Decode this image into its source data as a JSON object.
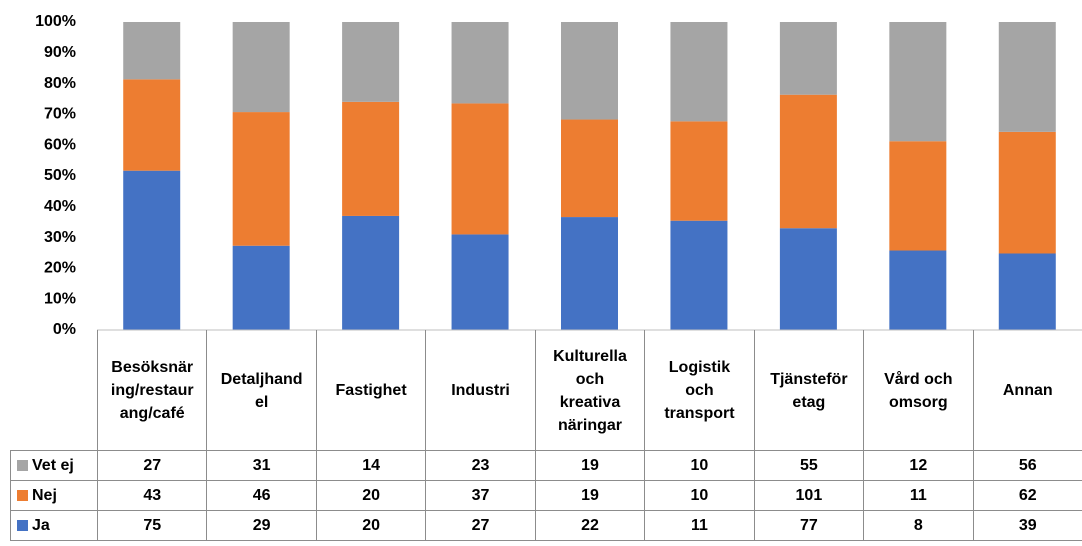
{
  "chart_data": {
    "type": "bar",
    "stacking": "percent",
    "categories": [
      "Besöksnäring/restaurang/café",
      "Detaljhandel",
      "Fastighet",
      "Industri",
      "Kulturella och kreativa näringar",
      "Logistik och transport",
      "Tjänsteföretag",
      "Vård och omsorg",
      "Annan"
    ],
    "series": [
      {
        "name": "Ja",
        "color": "#4472c4",
        "values": [
          75,
          29,
          20,
          27,
          22,
          11,
          77,
          8,
          39
        ]
      },
      {
        "name": "Nej",
        "color": "#ed7d31",
        "values": [
          43,
          46,
          20,
          37,
          19,
          10,
          101,
          11,
          62
        ]
      },
      {
        "name": "Vet ej",
        "color": "#a5a5a5",
        "values": [
          27,
          31,
          14,
          23,
          19,
          10,
          55,
          12,
          56
        ]
      }
    ],
    "ylim": [
      0,
      100
    ],
    "yticks": [
      {
        "value": 0,
        "label": "0%"
      },
      {
        "value": 10,
        "label": "10%"
      },
      {
        "value": 20,
        "label": "20%"
      },
      {
        "value": 30,
        "label": "30%"
      },
      {
        "value": 40,
        "label": "40%"
      },
      {
        "value": 50,
        "label": "50%"
      },
      {
        "value": 60,
        "label": "60%"
      },
      {
        "value": 70,
        "label": "70%"
      },
      {
        "value": 80,
        "label": "80%"
      },
      {
        "value": 90,
        "label": "90%"
      },
      {
        "value": 100,
        "label": "100%"
      }
    ],
    "grid": false,
    "legend": "data-table"
  }
}
